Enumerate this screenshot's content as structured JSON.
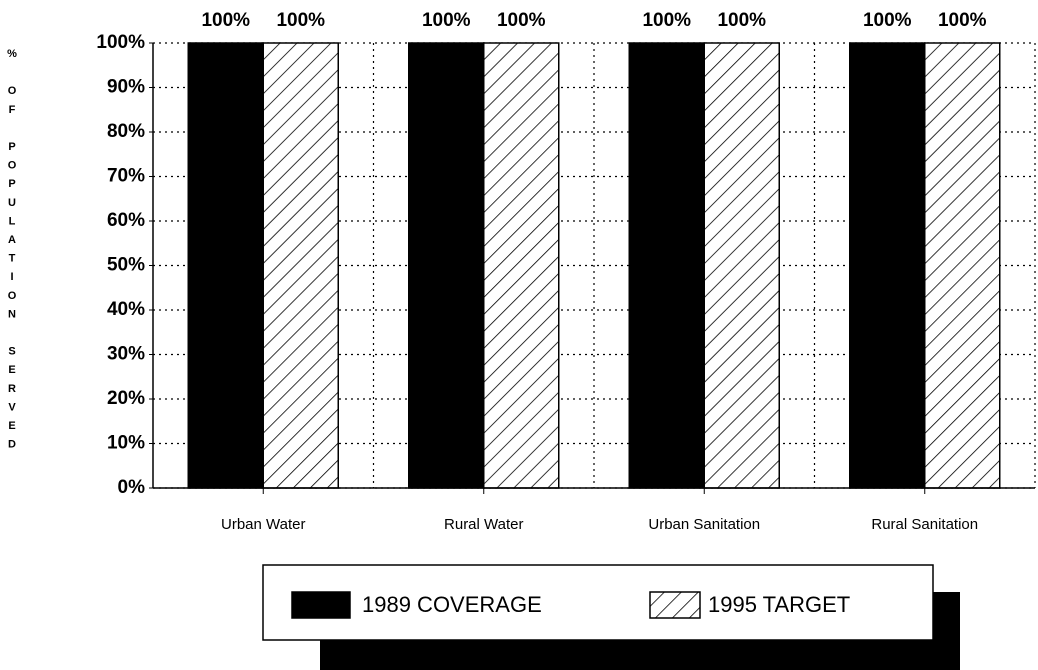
{
  "chart_data": {
    "type": "bar",
    "y_label": "% OF POPULATION SERVED",
    "categories": [
      "Urban Water",
      "Rural Water",
      "Urban Sanitation",
      "Rural Sanitation"
    ],
    "series": [
      {
        "name": "1989 COVERAGE",
        "color": "#000000",
        "values": [
          100,
          100,
          100,
          100
        ],
        "value_labels": [
          "100%",
          "100%",
          "100%",
          "100%"
        ]
      },
      {
        "name": "1995 TARGET",
        "color": "#000000",
        "hatch": true,
        "values": [
          100,
          100,
          100,
          100
        ],
        "value_labels": [
          "100%",
          "100%",
          "100%",
          "100%"
        ]
      }
    ],
    "ylim": [
      0,
      100
    ],
    "yticks": [
      {
        "value": 0,
        "label": "0%"
      },
      {
        "value": 10,
        "label": "10%"
      },
      {
        "value": 20,
        "label": "20%"
      },
      {
        "value": 30,
        "label": "30%"
      },
      {
        "value": 40,
        "label": "40%"
      },
      {
        "value": 50,
        "label": "50%"
      },
      {
        "value": 60,
        "label": "60%"
      },
      {
        "value": 70,
        "label": "70%"
      },
      {
        "value": 80,
        "label": "80%"
      },
      {
        "value": 90,
        "label": "90%"
      },
      {
        "value": 100,
        "label": "100%"
      }
    ],
    "grid": true,
    "legend": "bottom"
  }
}
